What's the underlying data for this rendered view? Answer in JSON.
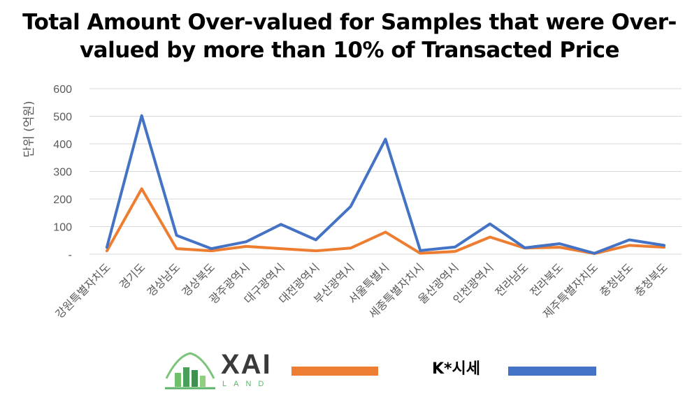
{
  "chart_data": {
    "type": "line",
    "title_lines": [
      "Total Amount Over-valued for Samples that were Over-",
      "valued by more than 10% of Transacted Price"
    ],
    "ylabel": "단위 (억원)",
    "xlabel": "",
    "ylim": [
      0,
      600
    ],
    "y_ticks": [
      {
        "value": 0,
        "label": "-"
      },
      {
        "value": 100,
        "label": "100"
      },
      {
        "value": 200,
        "label": "200"
      },
      {
        "value": 300,
        "label": "300"
      },
      {
        "value": 400,
        "label": "400"
      },
      {
        "value": 500,
        "label": "500"
      },
      {
        "value": 600,
        "label": "600"
      }
    ],
    "grid": true,
    "legend_placement": "bottom",
    "categories": [
      "강원특별자치도",
      "경기도",
      "경상남도",
      "경상북도",
      "광주광역시",
      "대구광역시",
      "대전광역시",
      "부산광역시",
      "서울특별시",
      "세종특별자치시",
      "울산광역시",
      "인천광역시",
      "전라남도",
      "전라북도",
      "제주특별자치도",
      "충청남도",
      "충청북도"
    ],
    "series": [
      {
        "name": "XAI LAND",
        "color": "#ED7D31",
        "values": [
          12,
          237,
          20,
          12,
          28,
          20,
          12,
          22,
          80,
          3,
          10,
          62,
          22,
          25,
          2,
          32,
          25
        ]
      },
      {
        "name": "K*시세",
        "color": "#4472C4",
        "values": [
          25,
          502,
          68,
          20,
          45,
          108,
          52,
          173,
          417,
          13,
          26,
          110,
          23,
          38,
          3,
          52,
          32
        ]
      }
    ]
  },
  "legend": {
    "logo_word": "XAI",
    "logo_sub": "LAND",
    "label2": "K*시세"
  }
}
